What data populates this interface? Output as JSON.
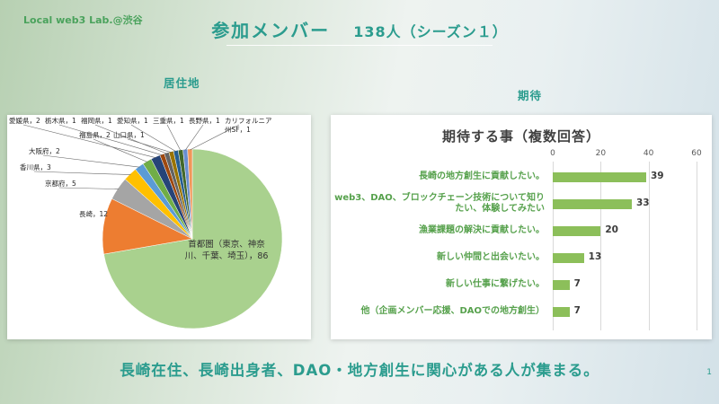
{
  "slide": {
    "logo": "Local web3 Lab.@渋谷",
    "title": "参加メンバー",
    "title_count": "138人（シーズン１）",
    "left_section_label": "居住地",
    "right_section_label": "期待",
    "bottom_message": "長崎在住、長崎出身者、DAO・地方創生に関心がある人が集まる。",
    "page_number": "1",
    "accent_color": "#2b9c8e",
    "logo_color": "#4aa25c"
  },
  "chart_data": [
    {
      "type": "pie",
      "title": "居住地",
      "categories": [
        "首都圏（東京、神奈川、千葉、埼玉）",
        "長崎",
        "京都府",
        "香川県",
        "大阪府",
        "福島県",
        "愛媛県",
        "栃木県",
        "福岡県",
        "山口県",
        "愛知県",
        "三重県",
        "長野県",
        "カリフォルニア州SF"
      ],
      "values": [
        86,
        12,
        5,
        3,
        2,
        2,
        2,
        1,
        1,
        1,
        1,
        1,
        1,
        1
      ],
      "colors": [
        "#A9D18E",
        "#ED7D31",
        "#A5A5A5",
        "#FFC000",
        "#5B9BD5",
        "#70AD47",
        "#264478",
        "#9E480E",
        "#636363",
        "#997300",
        "#255E91",
        "#43682B",
        "#698ED0",
        "#F1975A"
      ],
      "legend": false
    },
    {
      "type": "bar",
      "orientation": "horizontal",
      "title": "期待する事（複数回答）",
      "categories": [
        "長崎の地方創生に貢献したい。",
        "web3、DAO、ブロックチェーン技術について知りたい、体験してみたい",
        "漁業課題の解決に貢献したい。",
        "新しい仲間と出会いたい。",
        "新しい仕事に繋げたい。",
        "他（企画メンバー応援、DAOでの地方創生）"
      ],
      "values": [
        39,
        33,
        20,
        13,
        7,
        7
      ],
      "xlim": [
        0,
        60
      ],
      "ticks": [
        0,
        20,
        40,
        60
      ],
      "bar_color": "#8CBF5A",
      "category_color": "#56A14C",
      "grid": true,
      "legend": false
    }
  ]
}
